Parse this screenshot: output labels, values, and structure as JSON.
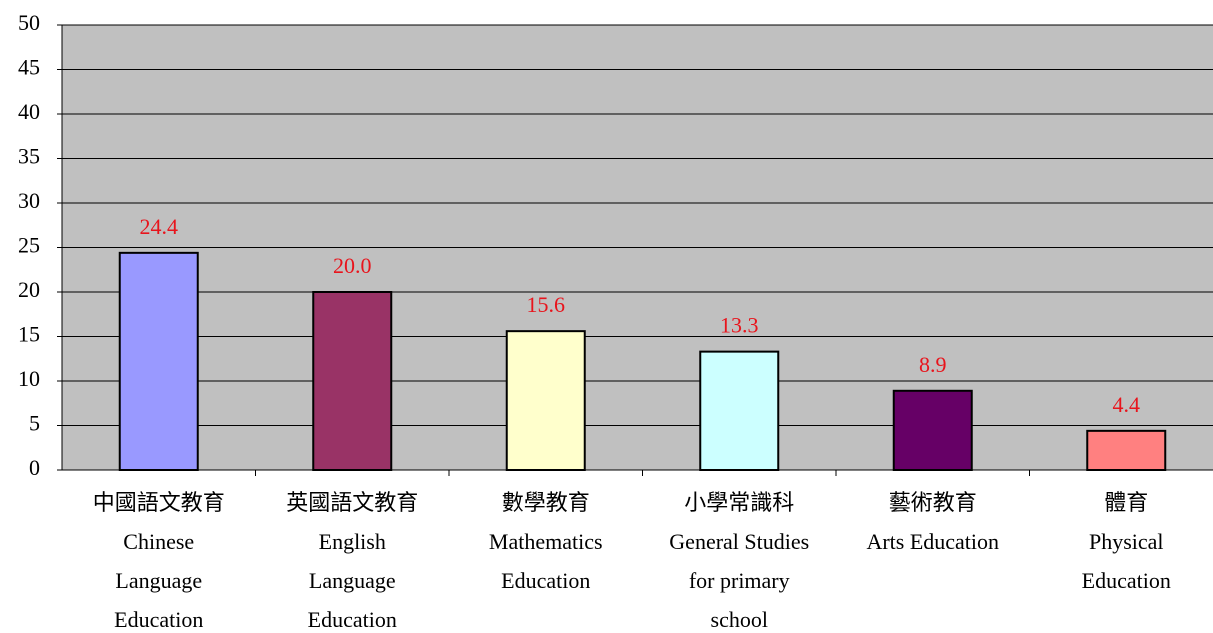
{
  "chart_data": {
    "type": "bar",
    "categories": [
      [
        "中國語文教育",
        "Chinese",
        "Language",
        "Education"
      ],
      [
        "英國語文教育",
        "English",
        "Language",
        "Education"
      ],
      [
        "數學教育",
        "Mathematics",
        "Education"
      ],
      [
        "小學常識科",
        "General Studies",
        "for primary",
        "school"
      ],
      [
        "藝術教育",
        "Arts Education"
      ],
      [
        "體育",
        "Physical",
        "Education"
      ]
    ],
    "values": [
      24.4,
      20.0,
      15.6,
      13.3,
      8.9,
      4.4
    ],
    "value_labels": [
      "24.4",
      "20.0",
      "15.6",
      "13.3",
      "8.9",
      "4.4"
    ],
    "colors": [
      "#9999ff",
      "#993366",
      "#ffffcc",
      "#ccffff",
      "#660066",
      "#ff8080"
    ],
    "ylim": [
      0,
      50
    ],
    "yticks": [
      0,
      5,
      10,
      15,
      20,
      25,
      30,
      35,
      40,
      45,
      50
    ],
    "grid": true
  }
}
